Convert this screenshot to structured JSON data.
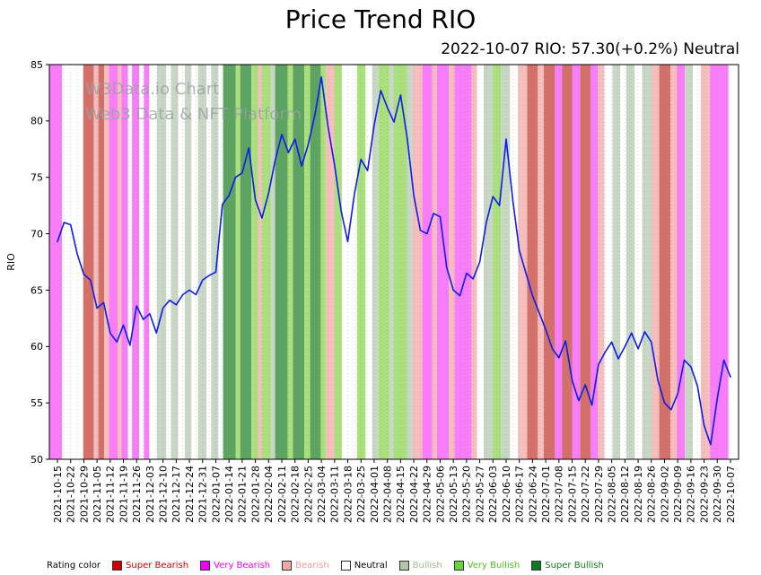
{
  "header": {
    "title": "Price Trend RIO",
    "subtitle": "2022-10-07 RIO: 57.30(+0.2%) Neutral"
  },
  "watermark": {
    "line1": "W3Data.io Chart",
    "line2": "Web3 Data & NFT Platform"
  },
  "legend": {
    "label": "Rating color",
    "items": [
      {
        "label": "Super Bearish",
        "key": "super_bearish",
        "color": "#cc0000",
        "text_color": "#cc0000"
      },
      {
        "label": "Very Bearish",
        "key": "very_bearish",
        "color": "#ee00ee",
        "text_color": "#ee00ee"
      },
      {
        "label": "Bearish",
        "key": "bearish",
        "color": "#f4a7a7",
        "text_color": "#ef9a9a"
      },
      {
        "label": "Neutral",
        "key": "neutral",
        "color": "#ffffff",
        "text_color": "#000000"
      },
      {
        "label": "Bullish",
        "key": "bullish",
        "color": "#aec7a6",
        "text_color": "#9ab891"
      },
      {
        "label": "Very Bullish",
        "key": "very_bullish",
        "color": "#66d43a",
        "text_color": "#4fbb22"
      },
      {
        "label": "Super Bullish",
        "key": "super_bullish",
        "color": "#0e7a1f",
        "text_color": "#0e7a1f"
      }
    ]
  },
  "chart_data": {
    "type": "line",
    "title": "Price Trend RIO",
    "subtitle": "2022-10-07 RIO: 57.30(+0.2%) Neutral",
    "xlabel": "",
    "ylabel": "RIO",
    "ylim": [
      50,
      85
    ],
    "yticks": [
      50,
      55,
      60,
      65,
      70,
      75,
      80,
      85
    ],
    "grid": false,
    "legend_position": "bottom",
    "latest": {
      "date": "2022-10-07",
      "value": 57.3,
      "change": "+0.2%",
      "rating": "Neutral"
    },
    "x_labels": [
      "2021-10-15",
      "2021-10-22",
      "2021-10-29",
      "2021-11-05",
      "2021-11-12",
      "2021-11-19",
      "2021-11-26",
      "2021-12-03",
      "2021-12-10",
      "2021-12-17",
      "2021-12-24",
      "2021-12-31",
      "2022-01-07",
      "2022-01-14",
      "2022-01-21",
      "2022-01-28",
      "2022-02-04",
      "2022-02-11",
      "2022-02-18",
      "2022-02-25",
      "2022-03-04",
      "2022-03-11",
      "2022-03-18",
      "2022-03-25",
      "2022-04-01",
      "2022-04-08",
      "2022-04-15",
      "2022-04-22",
      "2022-04-29",
      "2022-05-06",
      "2022-05-13",
      "2022-05-20",
      "2022-05-27",
      "2022-06-03",
      "2022-06-10",
      "2022-06-17",
      "2022-06-24",
      "2022-07-01",
      "2022-07-08",
      "2022-07-15",
      "2022-07-22",
      "2022-07-29",
      "2022-08-05",
      "2022-08-12",
      "2022-08-19",
      "2022-08-26",
      "2022-09-02",
      "2022-09-09",
      "2022-09-16",
      "2022-09-23",
      "2022-09-30",
      "2022-10-07"
    ],
    "step_weeks": 0.5,
    "series": [
      {
        "name": "RIO",
        "color": "#0d1bee",
        "values": [
          69.3,
          71.0,
          70.8,
          68.2,
          66.4,
          65.9,
          63.4,
          63.9,
          61.2,
          60.4,
          61.9,
          60.1,
          63.6,
          62.4,
          62.9,
          61.2,
          63.4,
          64.1,
          63.7,
          64.6,
          65.0,
          64.6,
          65.9,
          66.3,
          66.6,
          72.6,
          73.4,
          75.0,
          75.4,
          77.6,
          73.0,
          71.4,
          73.6,
          76.5,
          78.8,
          77.2,
          78.4,
          76.0,
          77.9,
          80.5,
          83.9,
          79.5,
          76.1,
          72.0,
          69.3,
          73.5,
          76.6,
          75.6,
          79.6,
          82.7,
          81.2,
          79.9,
          82.3,
          78.5,
          73.4,
          70.3,
          70.0,
          71.8,
          71.5,
          67.0,
          65.0,
          64.5,
          66.5,
          66.0,
          67.5,
          71.0,
          73.3,
          72.5,
          78.4,
          73.0,
          68.5,
          66.5,
          64.5,
          63.0,
          61.5,
          59.8,
          59.0,
          60.5,
          57.0,
          55.2,
          56.6,
          54.8,
          58.4,
          59.5,
          60.4,
          58.9,
          60.0,
          61.2,
          59.8,
          61.3,
          60.4,
          57.0,
          55.0,
          54.4,
          55.8,
          58.8,
          58.2,
          56.5,
          53.0,
          51.3,
          55.4,
          58.8,
          57.3
        ]
      }
    ],
    "rating_colors": {
      "super_bearish": "#d3706a",
      "very_bearish": "#f87df8",
      "bearish": "#f6bdbd",
      "neutral": "#ffffff",
      "bullish": "#c7d7c3",
      "very_bullish": "#a9e07b",
      "super_bullish": "#5da361"
    },
    "rating_bands": [
      [
        0.0,
        0.35,
        "very_bearish"
      ],
      [
        0.35,
        1.95,
        "neutral"
      ],
      [
        1.95,
        2.75,
        "super_bearish"
      ],
      [
        2.75,
        3.1,
        "bearish"
      ],
      [
        3.1,
        3.55,
        "super_bearish"
      ],
      [
        3.55,
        3.9,
        "bearish"
      ],
      [
        3.9,
        4.55,
        "very_bearish"
      ],
      [
        4.55,
        4.85,
        "bearish"
      ],
      [
        4.85,
        5.35,
        "very_bearish"
      ],
      [
        5.35,
        5.65,
        "neutral"
      ],
      [
        5.65,
        6.2,
        "very_bearish"
      ],
      [
        6.2,
        6.55,
        "neutral"
      ],
      [
        6.55,
        6.95,
        "very_bearish"
      ],
      [
        6.95,
        7.55,
        "neutral"
      ],
      [
        7.55,
        8.25,
        "bullish"
      ],
      [
        8.25,
        8.6,
        "neutral"
      ],
      [
        8.6,
        9.15,
        "bullish"
      ],
      [
        9.15,
        9.65,
        "neutral"
      ],
      [
        9.65,
        10.15,
        "bullish"
      ],
      [
        10.15,
        10.65,
        "neutral"
      ],
      [
        10.65,
        11.3,
        "bullish"
      ],
      [
        11.3,
        11.65,
        "neutral"
      ],
      [
        11.65,
        12.2,
        "bullish"
      ],
      [
        12.2,
        12.55,
        "neutral"
      ],
      [
        12.55,
        13.5,
        "super_bullish"
      ],
      [
        13.5,
        13.85,
        "very_bullish"
      ],
      [
        13.85,
        14.7,
        "super_bullish"
      ],
      [
        14.7,
        15.2,
        "very_bullish"
      ],
      [
        15.2,
        15.5,
        "bearish"
      ],
      [
        15.5,
        16.15,
        "very_bullish"
      ],
      [
        16.15,
        16.5,
        "bullish"
      ],
      [
        16.5,
        17.45,
        "super_bullish"
      ],
      [
        17.45,
        17.85,
        "very_bullish"
      ],
      [
        17.85,
        18.7,
        "super_bullish"
      ],
      [
        18.7,
        19.15,
        "very_bullish"
      ],
      [
        19.15,
        19.95,
        "super_bullish"
      ],
      [
        19.95,
        20.35,
        "very_bullish"
      ],
      [
        20.35,
        21.0,
        "bearish"
      ],
      [
        21.0,
        21.55,
        "very_bullish"
      ],
      [
        21.55,
        22.7,
        "neutral"
      ],
      [
        22.7,
        23.35,
        "very_bullish"
      ],
      [
        23.35,
        23.85,
        "neutral"
      ],
      [
        23.85,
        24.35,
        "bullish"
      ],
      [
        24.35,
        25.15,
        "very_bullish"
      ],
      [
        25.15,
        25.5,
        "bullish"
      ],
      [
        25.5,
        26.45,
        "very_bullish"
      ],
      [
        26.45,
        26.9,
        "bullish"
      ],
      [
        26.9,
        27.65,
        "bearish"
      ],
      [
        27.65,
        28.4,
        "very_bearish"
      ],
      [
        28.4,
        28.75,
        "bearish"
      ],
      [
        28.75,
        29.65,
        "very_bearish"
      ],
      [
        29.65,
        30.1,
        "bearish"
      ],
      [
        30.1,
        31.4,
        "very_bearish"
      ],
      [
        31.4,
        31.8,
        "bearish"
      ],
      [
        31.8,
        32.3,
        "neutral"
      ],
      [
        32.3,
        33.0,
        "bullish"
      ],
      [
        33.0,
        33.6,
        "very_bullish"
      ],
      [
        33.6,
        34.3,
        "bullish"
      ],
      [
        34.3,
        34.9,
        "neutral"
      ],
      [
        34.9,
        35.6,
        "bearish"
      ],
      [
        35.6,
        36.4,
        "super_bearish"
      ],
      [
        36.4,
        36.85,
        "bearish"
      ],
      [
        36.85,
        37.7,
        "super_bearish"
      ],
      [
        37.7,
        38.25,
        "very_bearish"
      ],
      [
        38.25,
        39.0,
        "super_bearish"
      ],
      [
        39.0,
        39.6,
        "very_bearish"
      ],
      [
        39.6,
        40.4,
        "super_bearish"
      ],
      [
        40.4,
        40.95,
        "very_bearish"
      ],
      [
        40.95,
        41.45,
        "bearish"
      ],
      [
        41.45,
        42.05,
        "neutral"
      ],
      [
        42.05,
        42.65,
        "bullish"
      ],
      [
        42.65,
        43.1,
        "neutral"
      ],
      [
        43.1,
        43.75,
        "bullish"
      ],
      [
        43.75,
        44.3,
        "neutral"
      ],
      [
        44.3,
        45.05,
        "bullish"
      ],
      [
        45.05,
        45.6,
        "bearish"
      ],
      [
        45.6,
        46.45,
        "super_bearish"
      ],
      [
        46.45,
        46.95,
        "bearish"
      ],
      [
        46.95,
        47.55,
        "very_bearish"
      ],
      [
        47.55,
        48.15,
        "bullish"
      ],
      [
        48.15,
        48.75,
        "neutral"
      ],
      [
        48.75,
        49.45,
        "bearish"
      ],
      [
        49.45,
        50.85,
        "very_bearish"
      ],
      [
        50.85,
        51.0,
        "neutral"
      ]
    ]
  }
}
